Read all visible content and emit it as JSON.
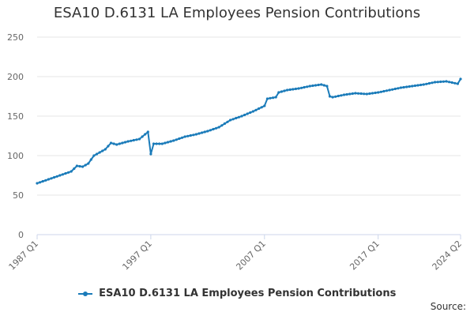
{
  "chart_data": {
    "type": "line",
    "title": "ESA10 D.6131 LA Employees Pension Contributions",
    "xlabel": "",
    "ylabel": "",
    "ylim": [
      0,
      250
    ],
    "yticks": [
      0,
      50,
      100,
      150,
      200,
      250
    ],
    "x_tick_labels": [
      "1987 Q1",
      "1997 Q1",
      "2007 Q1",
      "2017 Q1",
      "2024 Q2"
    ],
    "grid": "horizontal",
    "legend_position": "bottom",
    "colors": {
      "series": "#1a7bb9",
      "grid": "#e6e6e6",
      "axis": "#ccd6eb"
    },
    "series": [
      {
        "name": "ESA10 D.6131 LA Employees Pension Contributions",
        "points": [
          [
            "1987 Q1",
            65
          ],
          [
            "1988 Q1",
            70
          ],
          [
            "1989 Q1",
            75
          ],
          [
            "1990 Q1",
            80
          ],
          [
            "1990 Q3",
            87
          ],
          [
            "1991 Q1",
            86
          ],
          [
            "1991 Q3",
            90
          ],
          [
            "1992 Q1",
            100
          ],
          [
            "1993 Q1",
            108
          ],
          [
            "1993 Q3",
            116
          ],
          [
            "1994 Q1",
            114
          ],
          [
            "1995 Q1",
            118
          ],
          [
            "1996 Q1",
            121
          ],
          [
            "1996 Q4",
            130
          ],
          [
            "1997 Q1",
            102
          ],
          [
            "1997 Q2",
            115
          ],
          [
            "1998 Q1",
            115
          ],
          [
            "1999 Q1",
            119
          ],
          [
            "2000 Q1",
            124
          ],
          [
            "2001 Q1",
            127
          ],
          [
            "2002 Q1",
            131
          ],
          [
            "2003 Q1",
            136
          ],
          [
            "2004 Q1",
            145
          ],
          [
            "2005 Q1",
            150
          ],
          [
            "2006 Q1",
            156
          ],
          [
            "2007 Q1",
            163
          ],
          [
            "2007 Q2",
            172
          ],
          [
            "2008 Q1",
            174
          ],
          [
            "2008 Q2",
            180
          ],
          [
            "2009 Q1",
            183
          ],
          [
            "2010 Q1",
            185
          ],
          [
            "2011 Q1",
            188
          ],
          [
            "2012 Q1",
            190
          ],
          [
            "2012 Q3",
            188
          ],
          [
            "2012 Q4",
            175
          ],
          [
            "2013 Q1",
            174
          ],
          [
            "2014 Q1",
            177
          ],
          [
            "2015 Q1",
            179
          ],
          [
            "2016 Q1",
            178
          ],
          [
            "2017 Q1",
            180
          ],
          [
            "2018 Q1",
            183
          ],
          [
            "2019 Q1",
            186
          ],
          [
            "2020 Q1",
            188
          ],
          [
            "2021 Q1",
            190
          ],
          [
            "2022 Q1",
            193
          ],
          [
            "2023 Q1",
            194
          ],
          [
            "2024 Q1",
            191
          ],
          [
            "2024 Q2",
            197
          ]
        ]
      }
    ]
  },
  "source_label": "Source:"
}
